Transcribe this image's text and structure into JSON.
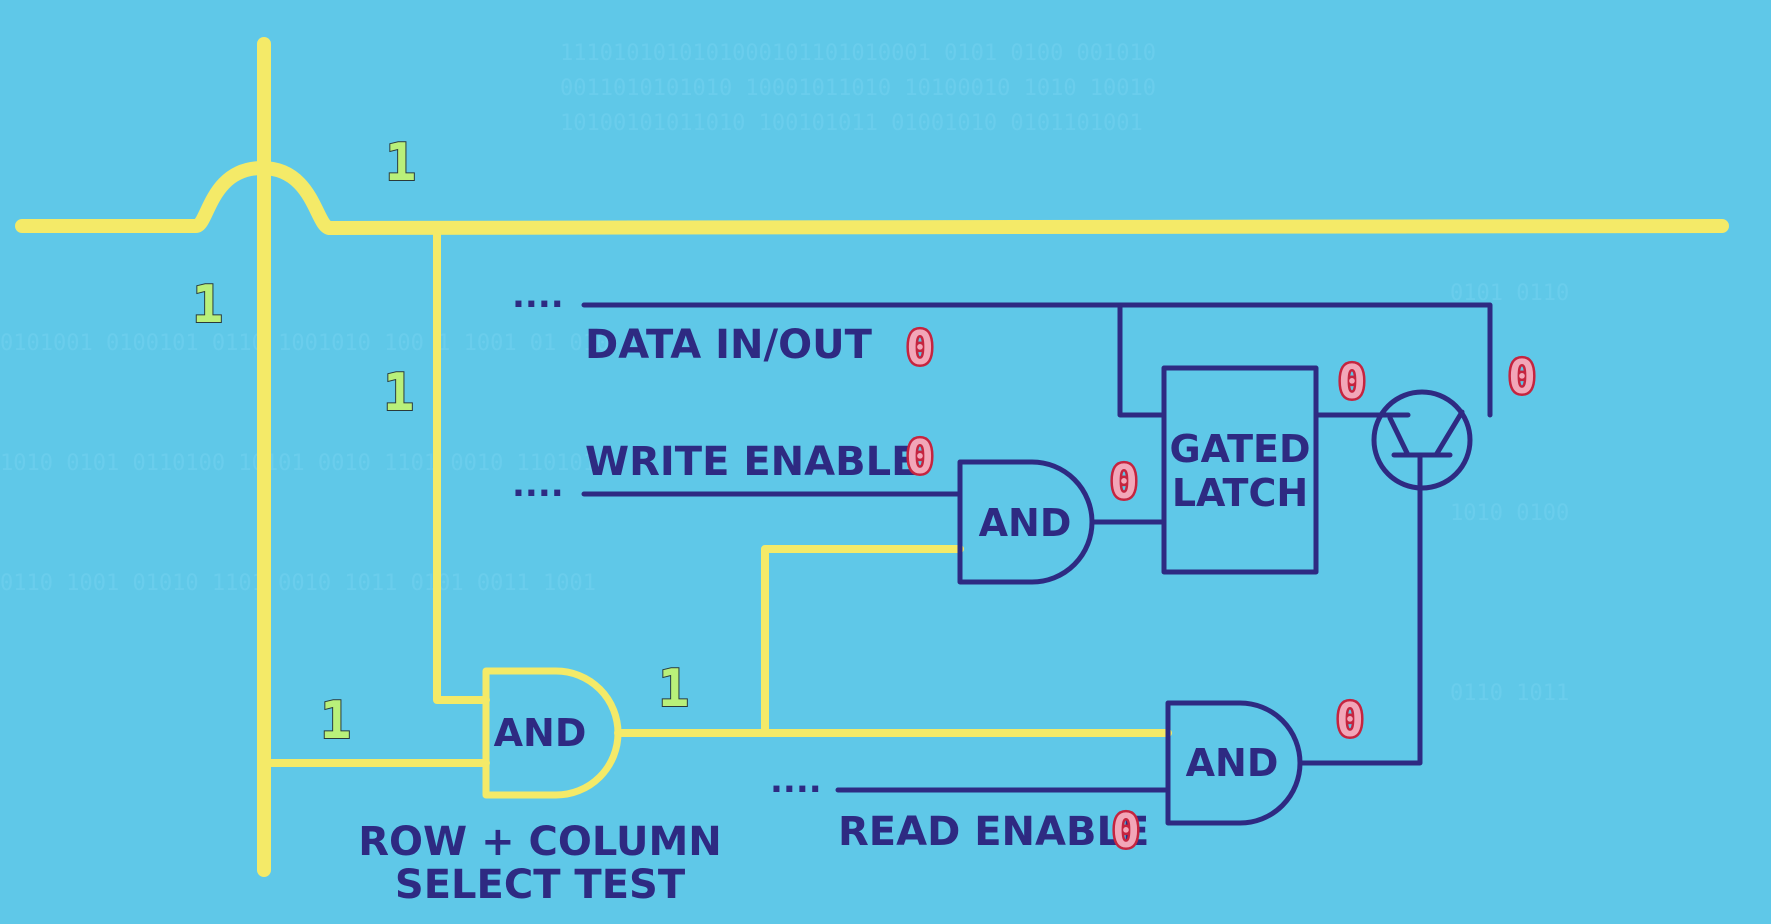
{
  "labels": {
    "data_in_out": "DATA IN/OUT",
    "write_enable": "WRITE ENABLE",
    "read_enable": "READ ENABLE",
    "row_column_line1": "ROW + COLUMN",
    "row_column_line2": "SELECT TEST",
    "gated_latch_line1": "GATED",
    "gated_latch_line2": "LATCH",
    "and_gate": "AND",
    "ellipsis": "...."
  },
  "signals": {
    "column_top": "1",
    "row_left": "1",
    "row_tap": "1",
    "column_tap": "1",
    "select_output": "1",
    "data_in_out": "0",
    "write_enable": "0",
    "write_and_output": "0",
    "latch_output": "0",
    "transistor_output": "0",
    "read_and_output": "0",
    "read_enable": "0"
  },
  "colors": {
    "background": "#5fc8e8",
    "select_wire": "#f4ea68",
    "logic_wire": "#2e2a82",
    "one_value": "#b9f07a",
    "zero_value": "#f2a6b8"
  }
}
